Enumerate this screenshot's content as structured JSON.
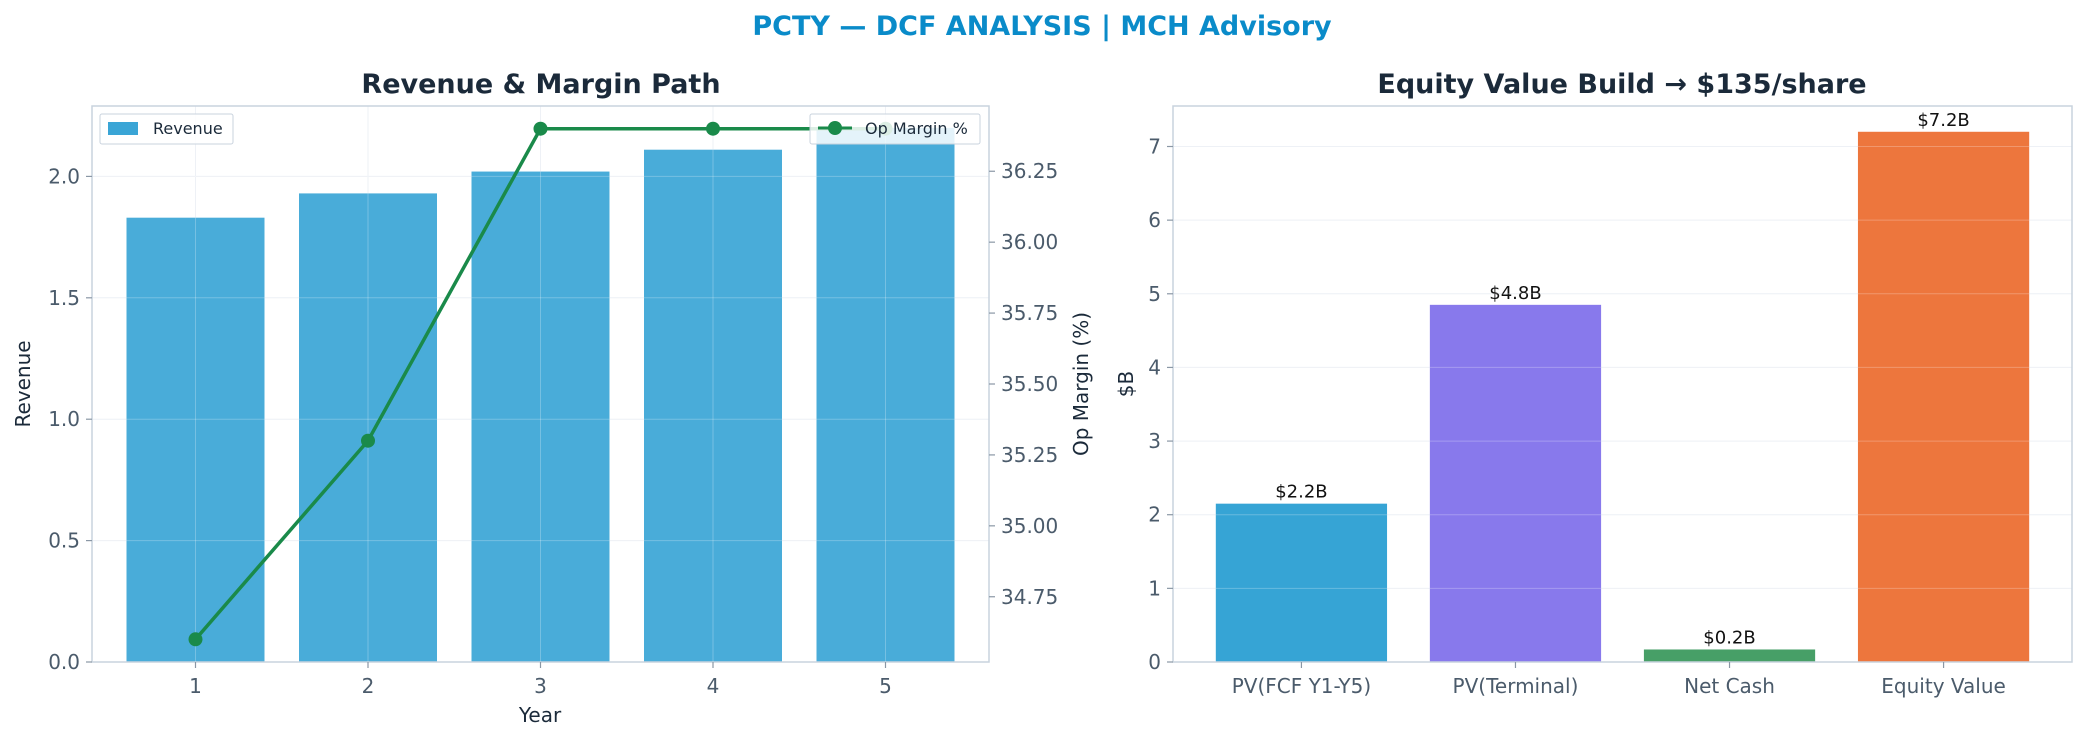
{
  "suptitle": "PCTY — DCF ANALYSIS | MCH Advisory",
  "chart_data": [
    {
      "type": "bar",
      "title": "Revenue & Margin Path",
      "xlabel": "Year",
      "ylabel": "Revenue",
      "y2label": "Op Margin (%)",
      "categories": [
        "1",
        "2",
        "3",
        "4",
        "5"
      ],
      "ylim": [
        0,
        2.29
      ],
      "yticks": [
        "0.0",
        "0.5",
        "1.0",
        "1.5",
        "2.0"
      ],
      "y2lim": [
        34.52,
        36.48
      ],
      "y2ticks": [
        "34.75",
        "35.00",
        "35.25",
        "35.50",
        "35.75",
        "36.00",
        "36.25"
      ],
      "grid": true,
      "series": [
        {
          "name": "Revenue",
          "type": "bar",
          "color": "#3aa5d6",
          "values": [
            1.83,
            1.93,
            2.02,
            2.11,
            2.2
          ]
        },
        {
          "name": "Op Margin %",
          "type": "line",
          "color": "#1a8a4a",
          "axis": "right",
          "values": [
            34.6,
            35.3,
            36.4,
            36.4,
            36.4
          ]
        }
      ],
      "legend": {
        "left": "upper-left",
        "right": "upper-right"
      }
    },
    {
      "type": "bar",
      "title": "Equity Value Build → $135/share",
      "ylabel": "$B",
      "categories": [
        "PV(FCF Y1-Y5)",
        "PV(Terminal)",
        "Net Cash",
        "Equity Value"
      ],
      "values": [
        2.15,
        4.85,
        0.17,
        7.2
      ],
      "data_labels": [
        "$2.2B",
        "$4.8B",
        "$0.2B",
        "$7.2B"
      ],
      "colors": [
        "#2b9fd3",
        "#8272eb",
        "#3d9a5f",
        "#ec6f33"
      ],
      "ylim": [
        0,
        7.55
      ],
      "yticks": [
        "0",
        "1",
        "2",
        "3",
        "4",
        "5",
        "6",
        "7"
      ],
      "grid": true
    }
  ]
}
